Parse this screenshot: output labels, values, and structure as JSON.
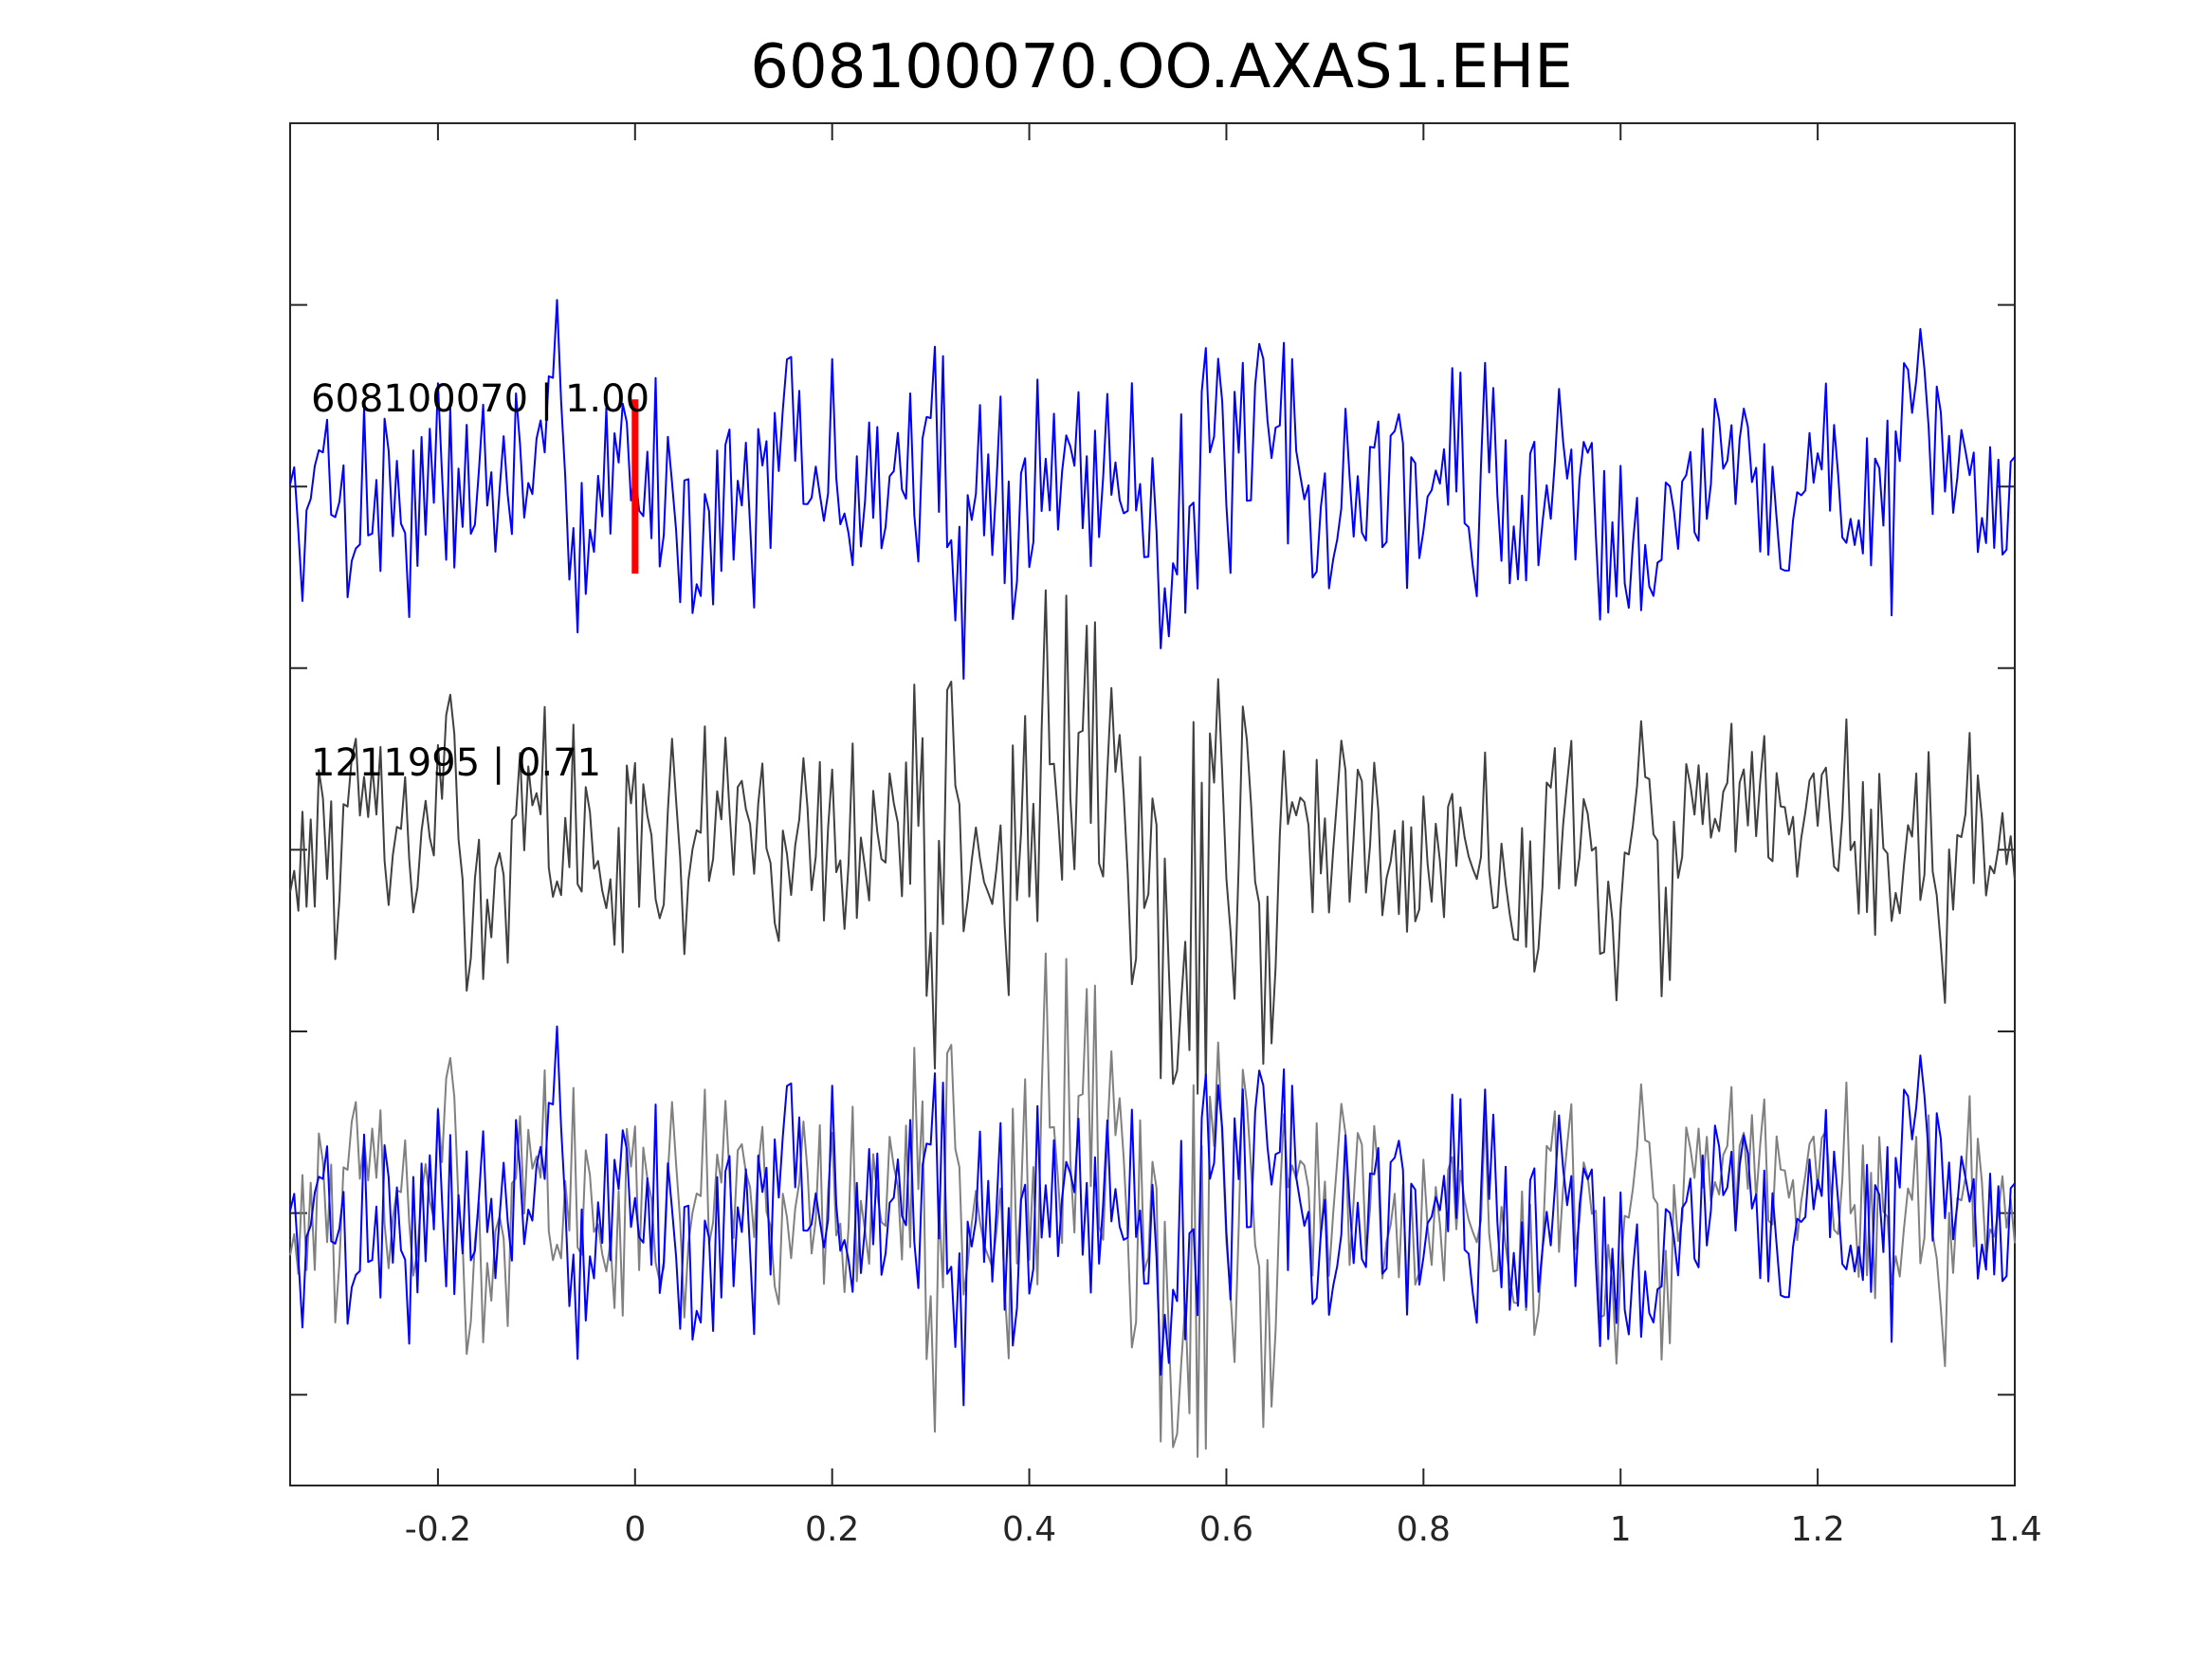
{
  "chart_data": {
    "type": "line",
    "title": "608100070.OO.AXAS1.EHE",
    "xlabel": "",
    "ylabel": "",
    "xlim": [
      -0.35,
      1.4
    ],
    "xticks": [
      -0.2,
      0,
      0.2,
      0.4,
      0.6,
      0.8,
      1,
      1.2,
      1.4
    ],
    "xtick_labels": [
      "-0.2",
      "0",
      "0.2",
      "0.4",
      "0.6",
      "0.8",
      "1",
      "1.2",
      "1.4"
    ],
    "yticks_count": 7,
    "ytick_labels_shown": false,
    "grid": false,
    "marker": {
      "x": 0,
      "color": "#ff0000",
      "trace": 1
    },
    "traces": [
      {
        "label": "608100070 | 1.00",
        "offset": 3,
        "color": "#0000ff",
        "seed": 7,
        "burst_center": 0.5,
        "burst_width": 0.5,
        "burst_gain": 0.2
      },
      {
        "label": "1211995 | 0.71",
        "offset": 1,
        "color": "#404040",
        "seed": 13,
        "burst_center": 0.48,
        "burst_width": 0.18,
        "burst_gain": 1.3
      }
    ],
    "overlay": {
      "offset": -1,
      "colors": [
        "#808080",
        "#0000ff"
      ]
    }
  }
}
